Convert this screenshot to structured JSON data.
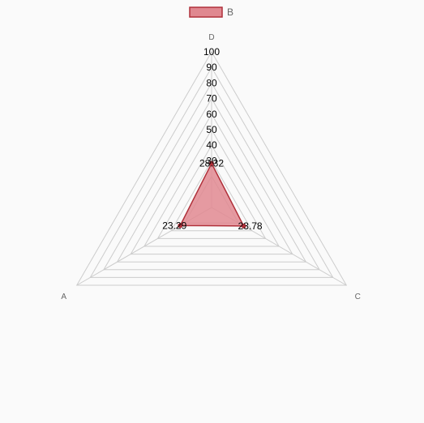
{
  "chart_data": {
    "type": "radar",
    "categories": [
      "D",
      "C",
      "A"
    ],
    "series": [
      {
        "name": "B",
        "values": [
          28.32,
          23.78,
          23.29
        ],
        "labels": [
          "28.32",
          "23.78",
          "23.29"
        ],
        "color": "#b0303a",
        "fill": "#e08890"
      }
    ],
    "rlim": [
      0,
      100
    ],
    "ticks": [
      30,
      40,
      50,
      60,
      70,
      80,
      90,
      100
    ],
    "grid_levels": [
      20,
      30,
      40,
      50,
      60,
      70,
      80,
      90,
      100
    ],
    "legend_position": "top",
    "grid": true
  },
  "colors": {
    "grid": "#cccccc",
    "background": "#fafafa",
    "axis_label": "#666666"
  }
}
